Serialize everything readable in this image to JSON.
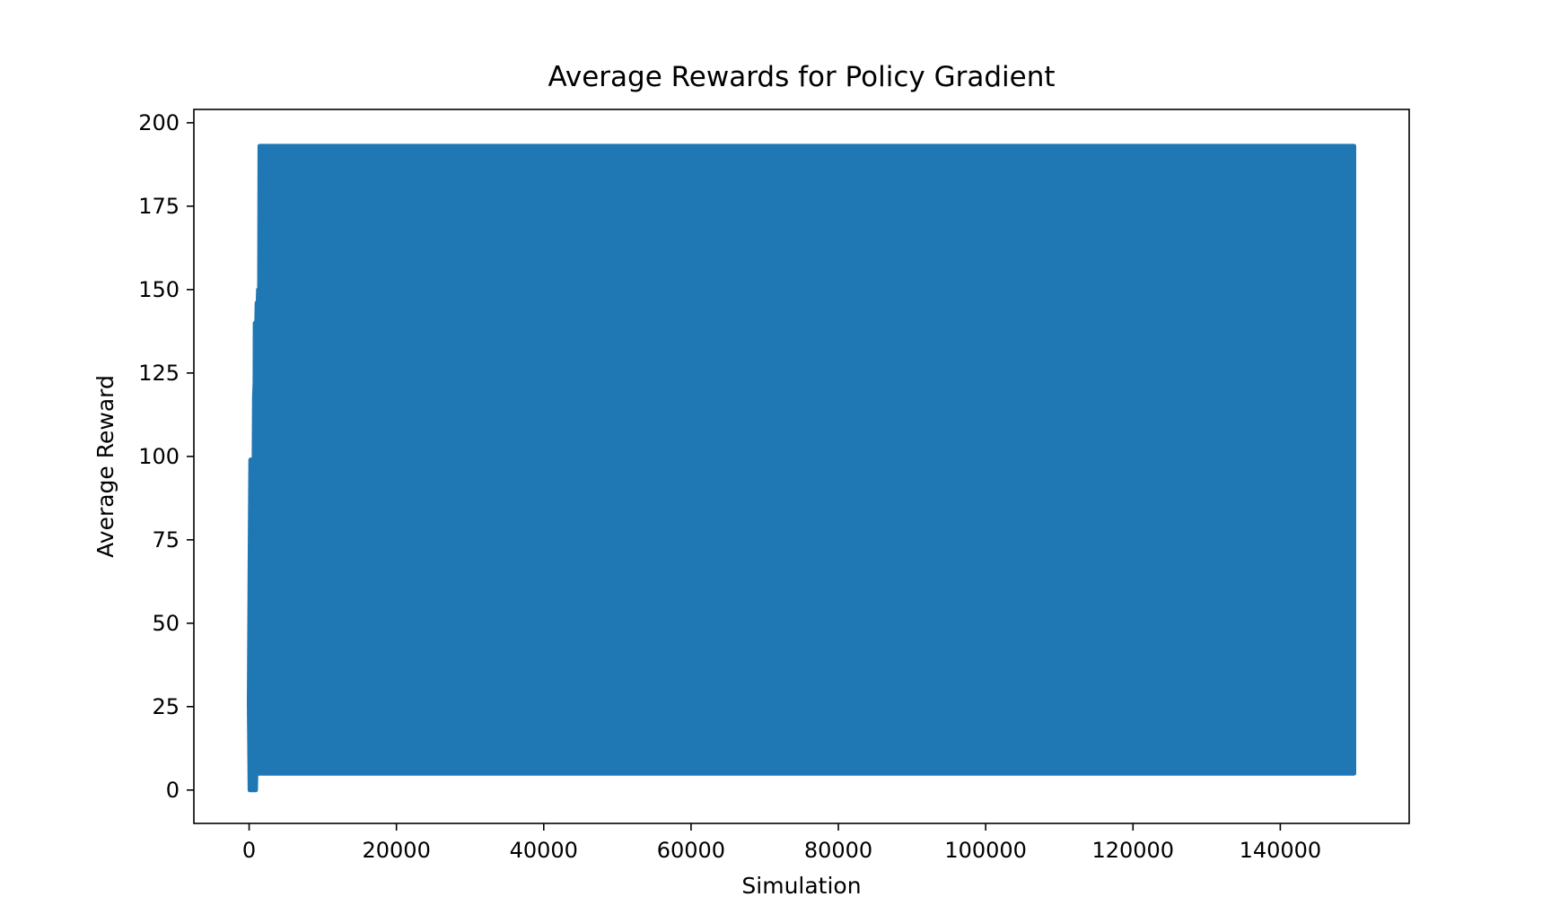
{
  "chart_data": {
    "type": "line",
    "title": "Average Rewards for Policy Gradient",
    "xlabel": "Simulation",
    "ylabel": "Average Reward",
    "xlim": [
      -7500,
      157500
    ],
    "ylim": [
      -10,
      204
    ],
    "grid": false,
    "legend": "none",
    "x_ticks": [
      0,
      20000,
      40000,
      60000,
      80000,
      100000,
      120000,
      140000
    ],
    "y_ticks": [
      0,
      25,
      50,
      75,
      100,
      125,
      150,
      175,
      200
    ],
    "series": [
      {
        "color": "#1f77b4",
        "description_of_shape": "rapidly oscillating reward; early ramp of upper envelope then saturated band",
        "upper_envelope": [
          {
            "x": 0,
            "y": 26
          },
          {
            "x": 100,
            "y": 68
          },
          {
            "x": 200,
            "y": 99
          },
          {
            "x": 600,
            "y": 99
          },
          {
            "x": 650,
            "y": 100
          },
          {
            "x": 700,
            "y": 118
          },
          {
            "x": 780,
            "y": 122
          },
          {
            "x": 800,
            "y": 140
          },
          {
            "x": 1000,
            "y": 140
          },
          {
            "x": 1050,
            "y": 146
          },
          {
            "x": 1200,
            "y": 146
          },
          {
            "x": 1250,
            "y": 150
          },
          {
            "x": 1400,
            "y": 150
          },
          {
            "x": 1450,
            "y": 193
          },
          {
            "x": 150000,
            "y": 193
          }
        ],
        "lower_envelope": [
          {
            "x": 0,
            "y": 26
          },
          {
            "x": 100,
            "y": 0
          },
          {
            "x": 900,
            "y": 0
          },
          {
            "x": 950,
            "y": 5
          },
          {
            "x": 150000,
            "y": 5
          }
        ]
      }
    ]
  }
}
